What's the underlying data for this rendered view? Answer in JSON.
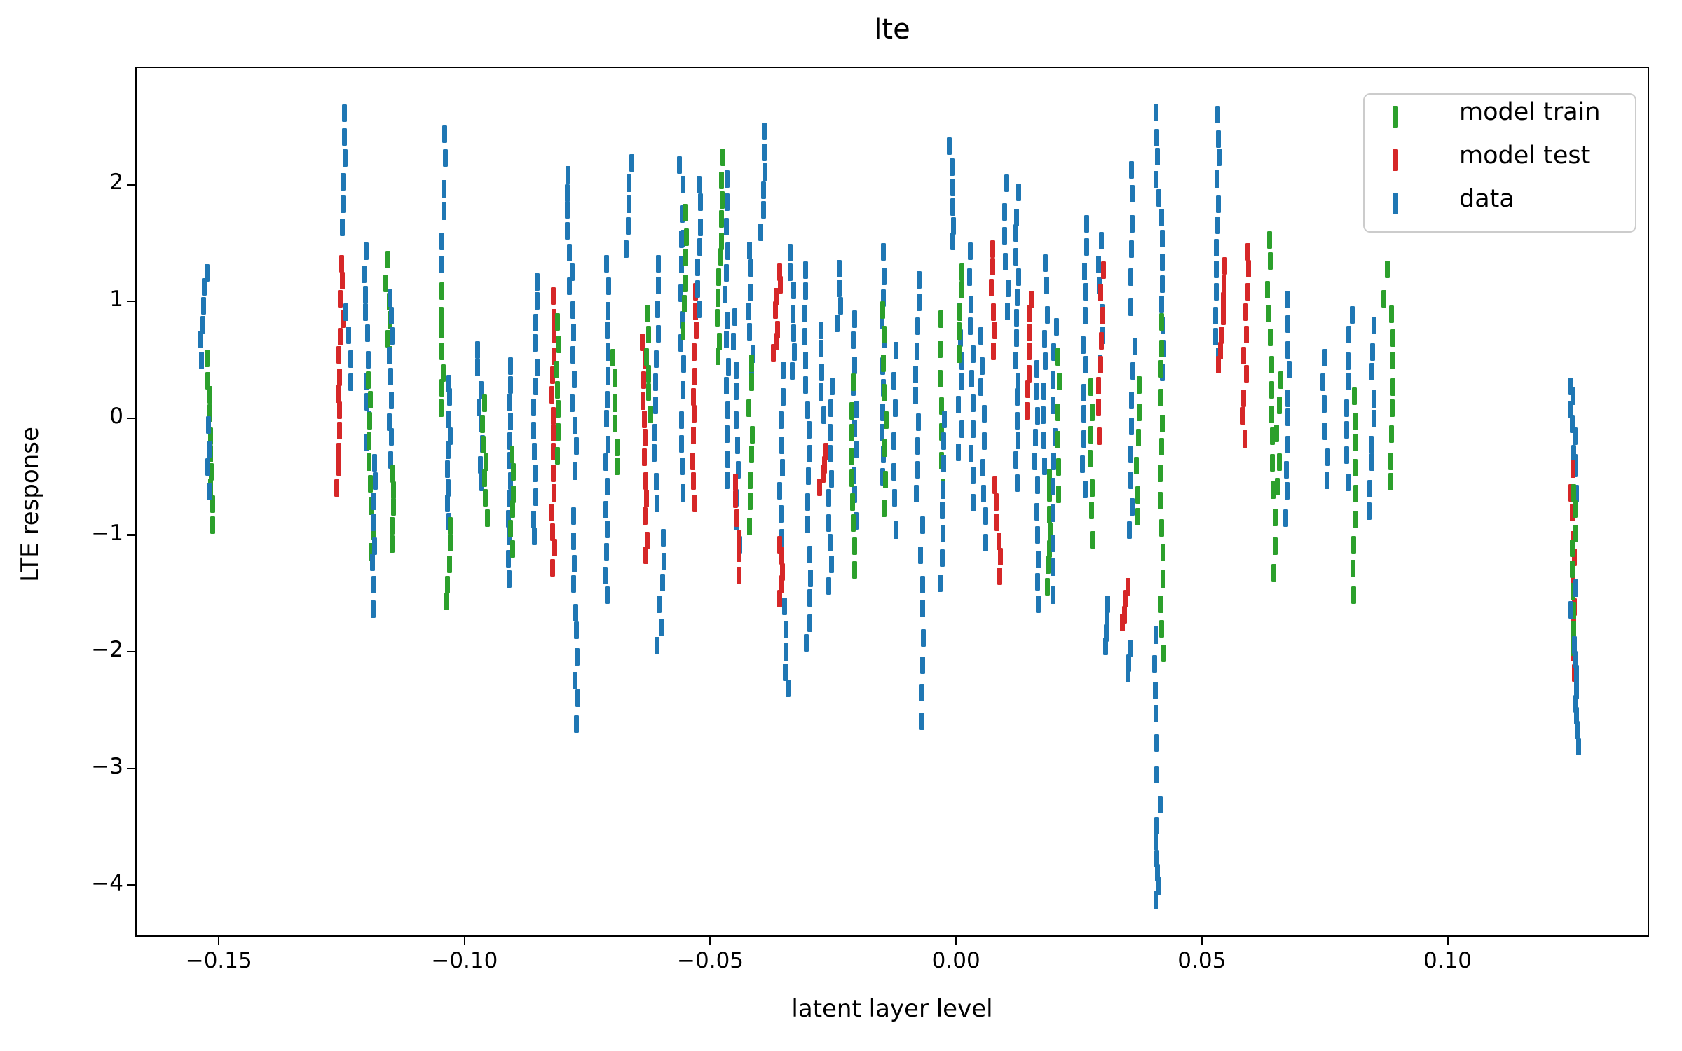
{
  "title": "lte",
  "axes": {
    "xlabel": "latent layer level",
    "ylabel": "LTE response"
  },
  "legend": {
    "items": [
      {
        "label": "model train",
        "color": "#2ca02c"
      },
      {
        "label": "model test",
        "color": "#d62728"
      },
      {
        "label": "data",
        "color": "#1f77b4"
      }
    ]
  },
  "chart_data": {
    "type": "scatter",
    "marker": "|",
    "title": "lte",
    "xlabel": "latent layer level",
    "ylabel": "LTE response",
    "grid": false,
    "legend_position": "upper right",
    "xlim": [
      -0.167,
      0.141
    ],
    "ylim": [
      -4.44,
      3.01
    ],
    "x_ticks": {
      "values": [
        -0.15,
        -0.1,
        -0.05,
        0.0,
        0.05,
        0.1
      ],
      "labels": [
        "−0.15",
        "−0.10",
        "−0.05",
        "0.00",
        "0.05",
        "0.10"
      ]
    },
    "y_ticks": {
      "values": [
        2,
        1,
        0,
        -1,
        -2,
        -3,
        -4
      ],
      "labels": [
        "2",
        "1",
        "0",
        "−1",
        "−2",
        "−3",
        "−4"
      ]
    },
    "series": [
      {
        "name": "model train",
        "key": "train",
        "color": "#2ca02c"
      },
      {
        "name": "model test",
        "key": "test",
        "color": "#d62728"
      },
      {
        "name": "data",
        "key": "data",
        "color": "#1f77b4"
      }
    ],
    "strand_format": [
      "series",
      "x",
      "y_from",
      "y_to",
      "count"
    ],
    "strands": [
      [
        "data",
        -0.153,
        1.28,
        0.52,
        6
      ],
      [
        "train",
        -0.1525,
        0.5,
        -0.9,
        10
      ],
      [
        "data",
        -0.1522,
        -0.05,
        -0.62,
        4
      ],
      [
        "data",
        -0.1248,
        2.62,
        1.66,
        6
      ],
      [
        "test",
        -0.1252,
        1.35,
        -0.58,
        13
      ],
      [
        "data",
        -0.1242,
        0.92,
        0.3,
        4
      ],
      [
        "data",
        -0.1205,
        1.45,
        -0.2,
        10
      ],
      [
        "train",
        -0.1198,
        0.35,
        -1.12,
        9
      ],
      [
        "data",
        -0.1188,
        -0.35,
        -1.6,
        8
      ],
      [
        "train",
        -0.1162,
        1.35,
        0.55,
        6
      ],
      [
        "data",
        -0.1152,
        1.05,
        -0.35,
        9
      ],
      [
        "train",
        -0.1145,
        -0.45,
        -1.08,
        5
      ],
      [
        "data",
        -0.1042,
        2.45,
        1.32,
        6
      ],
      [
        "train",
        -0.1048,
        1.08,
        0.08,
        7
      ],
      [
        "data",
        -0.1035,
        0.32,
        -0.88,
        9
      ],
      [
        "train",
        -0.103,
        -0.92,
        -1.55,
        5
      ],
      [
        "data",
        -0.0975,
        0.6,
        -0.55,
        8
      ],
      [
        "train",
        -0.0965,
        0.12,
        -0.85,
        7
      ],
      [
        "data",
        -0.0912,
        0.48,
        -1.35,
        12
      ],
      [
        "train",
        -0.0903,
        -0.3,
        -1.1,
        6
      ],
      [
        "data",
        -0.0856,
        1.18,
        -1.02,
        13
      ],
      [
        "test",
        -0.0822,
        1.05,
        -1.28,
        15
      ],
      [
        "train",
        -0.0813,
        0.82,
        -0.3,
        7
      ],
      [
        "data",
        -0.0795,
        2.12,
        1.28,
        6
      ],
      [
        "data",
        -0.0786,
        1.12,
        -0.42,
        9
      ],
      [
        "data",
        -0.0778,
        -0.85,
        -2.6,
        10
      ],
      [
        "data",
        -0.0712,
        1.32,
        -1.52,
        16
      ],
      [
        "train",
        -0.07,
        0.55,
        -0.42,
        6
      ],
      [
        "data",
        -0.0665,
        2.2,
        1.48,
        5
      ],
      [
        "test",
        -0.064,
        0.68,
        -1.18,
        12
      ],
      [
        "train",
        -0.0633,
        0.9,
        0.05,
        6
      ],
      [
        "data",
        -0.061,
        1.35,
        -0.72,
        11
      ],
      [
        "data",
        -0.0598,
        -1.02,
        -1.95,
        6
      ],
      [
        "data",
        -0.0563,
        2.2,
        1.55,
        4
      ],
      [
        "data",
        -0.056,
        1.52,
        -0.62,
        11
      ],
      [
        "train",
        -0.0552,
        1.75,
        0.78,
        6
      ],
      [
        "test",
        -0.0532,
        1.12,
        -0.7,
        11
      ],
      [
        "data",
        -0.0522,
        2.02,
        0.92,
        7
      ],
      [
        "train",
        -0.0478,
        2.22,
        0.52,
        11
      ],
      [
        "data",
        -0.047,
        2.05,
        -0.52,
        14
      ],
      [
        "data",
        -0.0455,
        0.88,
        -1.08,
        10
      ],
      [
        "test",
        -0.0452,
        -0.52,
        -1.32,
        6
      ],
      [
        "data",
        -0.0393,
        2.48,
        1.6,
        6
      ],
      [
        "data",
        -0.0425,
        1.45,
        0.4,
        7
      ],
      [
        "train",
        -0.042,
        0.5,
        -0.92,
        8
      ],
      [
        "test",
        -0.0362,
        1.28,
        0.55,
        7
      ],
      [
        "data",
        -0.0338,
        1.45,
        0.4,
        7
      ],
      [
        "data",
        -0.0355,
        0.4,
        -1.0,
        8
      ],
      [
        "test",
        -0.0358,
        -1.05,
        -1.52,
        5
      ],
      [
        "data",
        -0.035,
        -1.62,
        -2.32,
        5
      ],
      [
        "data",
        -0.031,
        1.28,
        -0.88,
        12
      ],
      [
        "data",
        -0.0298,
        -1.18,
        -1.92,
        5
      ],
      [
        "data",
        -0.0277,
        0.78,
        0.05,
        5
      ],
      [
        "test",
        -0.027,
        -0.28,
        -0.58,
        4
      ],
      [
        "data",
        -0.0258,
        0.28,
        -1.45,
        10
      ],
      [
        "data",
        -0.0238,
        1.28,
        0.82,
        4
      ],
      [
        "data",
        -0.021,
        0.85,
        -0.85,
        10
      ],
      [
        "train",
        -0.0215,
        0.3,
        -1.3,
        9
      ],
      [
        "data",
        -0.0152,
        1.44,
        -0.5,
        11
      ],
      [
        "train",
        -0.0148,
        0.95,
        -0.75,
        8
      ],
      [
        "data",
        -0.0128,
        0.6,
        -0.95,
        7
      ],
      [
        "data",
        -0.008,
        1.2,
        -0.62,
        10
      ],
      [
        "data",
        -0.0072,
        -0.92,
        -2.58,
        8
      ],
      [
        "train",
        -0.0034,
        0.85,
        -0.6,
        7
      ],
      [
        "data",
        -0.0025,
        0.02,
        -1.4,
        8
      ],
      [
        "data",
        -0.0015,
        2.35,
        1.5,
        6
      ],
      [
        "data",
        0.0005,
        0.92,
        -0.3,
        7
      ],
      [
        "train",
        0.0008,
        1.28,
        0.55,
        5
      ],
      [
        "data",
        0.0028,
        1.42,
        -0.7,
        11
      ],
      [
        "test",
        0.007,
        1.48,
        0.58,
        6
      ],
      [
        "test",
        0.0078,
        -0.55,
        -1.35,
        6
      ],
      [
        "data",
        0.005,
        0.7,
        -1.05,
        9
      ],
      [
        "data",
        0.0098,
        2.02,
        0.92,
        6
      ],
      [
        "data",
        0.0122,
        1.92,
        -0.52,
        15
      ],
      [
        "test",
        0.0152,
        1.05,
        0.08,
        7
      ],
      [
        "data",
        0.016,
        0.45,
        -1.6,
        11
      ],
      [
        "data",
        0.0182,
        1.35,
        -0.38,
        9
      ],
      [
        "train",
        0.0186,
        -0.5,
        -1.42,
        7
      ],
      [
        "data",
        0.0198,
        0.8,
        -1.52,
        11
      ],
      [
        "train",
        0.0205,
        0.55,
        -0.62,
        6
      ],
      [
        "data",
        0.026,
        1.7,
        -0.6,
        12
      ],
      [
        "train",
        0.0274,
        0.3,
        -1.02,
        7
      ],
      [
        "data",
        0.029,
        1.55,
        0.5,
        6
      ],
      [
        "test",
        0.0295,
        1.3,
        -0.12,
        8
      ],
      [
        "data",
        0.0306,
        -1.6,
        -1.95,
        4
      ],
      [
        "data",
        0.0352,
        2.15,
        0.98,
        6
      ],
      [
        "data",
        0.036,
        0.62,
        -0.95,
        8
      ],
      [
        "train",
        0.0368,
        0.3,
        -0.85,
        6
      ],
      [
        "test",
        0.0346,
        -1.45,
        -1.76,
        4
      ],
      [
        "data",
        0.0354,
        -1.95,
        -2.18,
        3
      ],
      [
        "data",
        0.0402,
        2.62,
        2.05,
        4
      ],
      [
        "data",
        0.0412,
        1.92,
        0.4,
        9
      ],
      [
        "train",
        0.0415,
        0.85,
        -2.0,
        14
      ],
      [
        "data",
        0.0403,
        -1.85,
        -2.75,
        5
      ],
      [
        "data",
        0.0405,
        -3.05,
        -3.28,
        2
      ],
      [
        "data",
        0.0407,
        -3.5,
        -4.12,
        6
      ],
      [
        "data",
        0.0531,
        2.61,
        0.52,
        12
      ],
      [
        "test",
        0.0542,
        1.32,
        0.45,
        7
      ],
      [
        "test",
        0.059,
        1.45,
        -0.15,
        10
      ],
      [
        "train",
        0.0632,
        1.55,
        -0.58,
        11
      ],
      [
        "train",
        0.0655,
        0.35,
        -1.3,
        8
      ],
      [
        "data",
        0.0674,
        1.02,
        -0.82,
        10
      ],
      [
        "data",
        0.0744,
        0.55,
        -0.52,
        6
      ],
      [
        "data",
        0.08,
        0.92,
        -0.52,
        8
      ],
      [
        "train",
        0.0808,
        0.22,
        -1.48,
        9
      ],
      [
        "data",
        0.0848,
        0.78,
        -0.78,
        9
      ],
      [
        "train",
        0.0876,
        1.28,
        1.02,
        2
      ],
      [
        "train",
        0.0884,
        0.92,
        -0.55,
        8
      ],
      [
        "data",
        0.1248,
        0.3,
        -0.38,
        7
      ],
      [
        "data",
        0.1258,
        -0.4,
        -0.62,
        2
      ],
      [
        "test",
        0.125,
        -0.42,
        -2.18,
        10
      ],
      [
        "train",
        0.1256,
        -0.62,
        -1.95,
        9
      ],
      [
        "data",
        0.126,
        -1.45,
        -1.65,
        2
      ],
      [
        "data",
        0.1255,
        -1.95,
        -2.8,
        8
      ]
    ]
  }
}
